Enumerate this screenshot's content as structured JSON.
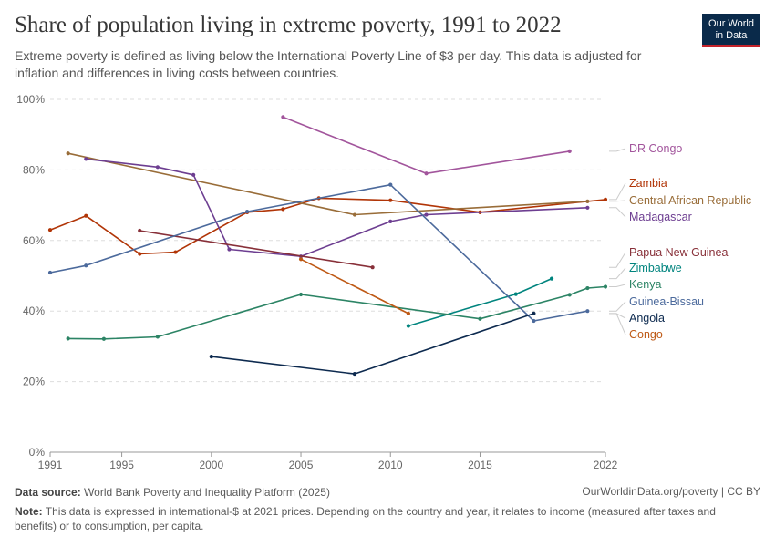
{
  "header": {
    "title": "Share of population living in extreme poverty, 1991 to 2022",
    "subtitle": "Extreme poverty is defined as living below the International Poverty Line of $3 per day. This data is adjusted for inflation and differences in living costs between countries.",
    "logo_line1": "Our World",
    "logo_line2": "in Data"
  },
  "footer": {
    "source_label": "Data source:",
    "source_text": " World Bank Poverty and Inequality Platform (2025)",
    "url_text": "OurWorldinData.org/poverty | CC BY",
    "note_label": "Note:",
    "note_text": " This data is expressed in international-$ at 2021 prices. Depending on the country and year, it relates to income (measured after taxes and benefits) or to consumption, per capita."
  },
  "chart_data": {
    "type": "line",
    "title": "Share of population living in extreme poverty, 1991 to 2022",
    "xlim": [
      1991,
      2022
    ],
    "ylim": [
      0,
      100
    ],
    "x_ticks": [
      1991,
      1995,
      2000,
      2005,
      2010,
      2015,
      2022
    ],
    "y_ticks": [
      0,
      20,
      40,
      60,
      80,
      100
    ],
    "y_tick_labels": [
      "0%",
      "20%",
      "40%",
      "60%",
      "80%",
      "100%"
    ],
    "grid": "horizontal dashed",
    "legend": "right, line labels",
    "series": [
      {
        "name": "DR Congo",
        "color": "#a2559c",
        "label_value": 85.3,
        "points": [
          [
            2004,
            95
          ],
          [
            2012,
            79
          ],
          [
            2020,
            85.3
          ]
        ]
      },
      {
        "name": "Zambia",
        "color": "#b13507",
        "label_value": 71.6,
        "points": [
          [
            1991,
            63
          ],
          [
            1993,
            67
          ],
          [
            1996,
            56.2
          ],
          [
            1998,
            56.7
          ],
          [
            2002,
            68
          ],
          [
            2004,
            68.9
          ],
          [
            2006,
            72
          ],
          [
            2010,
            71.4
          ],
          [
            2015,
            68
          ],
          [
            2022,
            71.6
          ]
        ]
      },
      {
        "name": "Central African Republic",
        "color": "#996d39",
        "label_value": 71.1,
        "points": [
          [
            1992,
            84.7
          ],
          [
            2008,
            67.3
          ],
          [
            2021,
            71.1
          ]
        ]
      },
      {
        "name": "Madagascar",
        "color": "#6d3e91",
        "label_value": 69.3,
        "points": [
          [
            1993,
            83.1
          ],
          [
            1997,
            80.8
          ],
          [
            1999,
            78.6
          ],
          [
            2001,
            57.5
          ],
          [
            2005,
            55.5
          ],
          [
            2010,
            65.4
          ],
          [
            2012,
            67.3
          ],
          [
            2021,
            69.3
          ]
        ]
      },
      {
        "name": "Papua New Guinea",
        "color": "#883039",
        "label_value": 52.4,
        "points": [
          [
            1996,
            62.8
          ],
          [
            2009,
            52.4
          ]
        ]
      },
      {
        "name": "Zimbabwe",
        "color": "#00847e",
        "label_value": 49.2,
        "points": [
          [
            2011,
            35.8
          ],
          [
            2017,
            44.8
          ],
          [
            2019,
            49.2
          ]
        ]
      },
      {
        "name": "Kenya",
        "color": "#2c8465",
        "label_value": 46.9,
        "points": [
          [
            1992,
            32.2
          ],
          [
            1994,
            32.1
          ],
          [
            1997,
            32.7
          ],
          [
            2005,
            44.7
          ],
          [
            2015,
            37.8
          ],
          [
            2020,
            44.6
          ],
          [
            2021,
            46.5
          ],
          [
            2022,
            46.9
          ]
        ]
      },
      {
        "name": "Guinea-Bissau",
        "color": "#4c6a9c",
        "label_value": 40,
        "points": [
          [
            1991,
            50.9
          ],
          [
            1993,
            52.9
          ],
          [
            2002,
            68.2
          ],
          [
            2010,
            75.8
          ],
          [
            2018,
            37.2
          ],
          [
            2021,
            40
          ]
        ]
      },
      {
        "name": "Angola",
        "color": "#0d2a4f",
        "label_value": 39.3,
        "points": [
          [
            2000,
            27.1
          ],
          [
            2008,
            22.2
          ],
          [
            2018,
            39.3
          ]
        ]
      },
      {
        "name": "Congo",
        "color": "#be5915",
        "label_value": 39.3,
        "points": [
          [
            2005,
            54.7
          ],
          [
            2011,
            39.3
          ]
        ]
      }
    ]
  }
}
